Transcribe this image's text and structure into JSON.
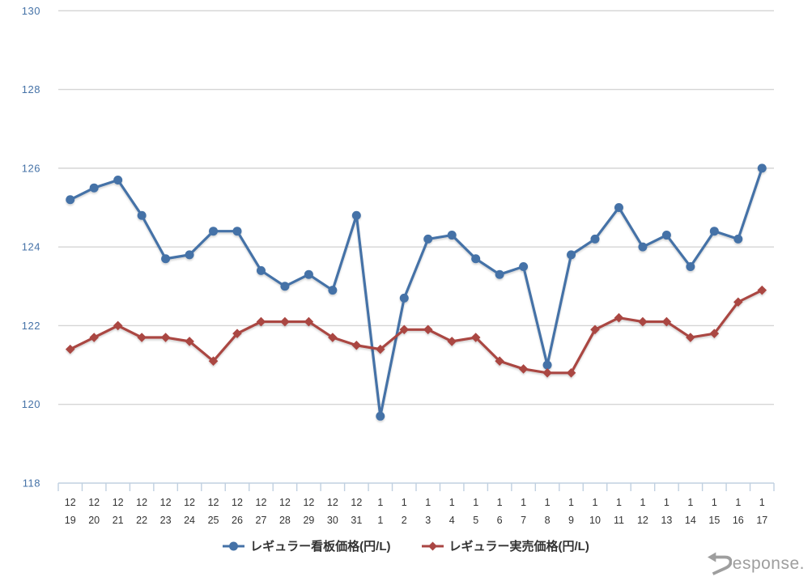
{
  "chart_data": {
    "type": "line",
    "title": "",
    "xlabel": "",
    "ylabel": "",
    "categories": [
      "12/19",
      "12/20",
      "12/21",
      "12/22",
      "12/23",
      "12/24",
      "12/25",
      "12/26",
      "12/27",
      "12/28",
      "12/29",
      "12/30",
      "12/31",
      "1/1",
      "1/2",
      "1/3",
      "1/4",
      "1/5",
      "1/6",
      "1/7",
      "1/8",
      "1/9",
      "1/10",
      "1/11",
      "1/12",
      "1/13",
      "1/14",
      "1/15",
      "1/16",
      "1/17"
    ],
    "series": [
      {
        "name": "レギュラー看板価格(円/L)",
        "color": "#4572a7",
        "marker": "circle",
        "values": [
          125.2,
          125.5,
          125.7,
          124.8,
          123.7,
          123.8,
          124.4,
          124.4,
          123.4,
          123.0,
          123.3,
          122.9,
          124.8,
          119.7,
          122.7,
          124.2,
          124.3,
          123.7,
          123.3,
          123.5,
          121.0,
          123.8,
          124.2,
          125.0,
          124.0,
          124.3,
          123.5,
          124.4,
          124.2,
          126.0
        ]
      },
      {
        "name": "レギュラー実売価格(円/L)",
        "color": "#aa4643",
        "marker": "diamond",
        "values": [
          121.4,
          121.7,
          122.0,
          121.7,
          121.7,
          121.6,
          121.1,
          121.8,
          122.1,
          122.1,
          122.1,
          121.7,
          121.5,
          121.4,
          121.9,
          121.9,
          121.6,
          121.7,
          121.1,
          120.9,
          120.8,
          120.8,
          121.9,
          122.2,
          122.1,
          122.1,
          121.7,
          121.8,
          122.6,
          122.9
        ]
      }
    ],
    "ylim": [
      118,
      130
    ],
    "yticks": [
      118,
      120,
      122,
      124,
      126,
      128,
      130
    ],
    "grid": true,
    "legend_position": "bottom",
    "colors": {
      "y_label": "#4572a7",
      "x_label": "#333333",
      "grid_line": "#d5d5d5",
      "axis_line": "#c0d0e0"
    }
  },
  "watermark": {
    "text": "Response."
  }
}
